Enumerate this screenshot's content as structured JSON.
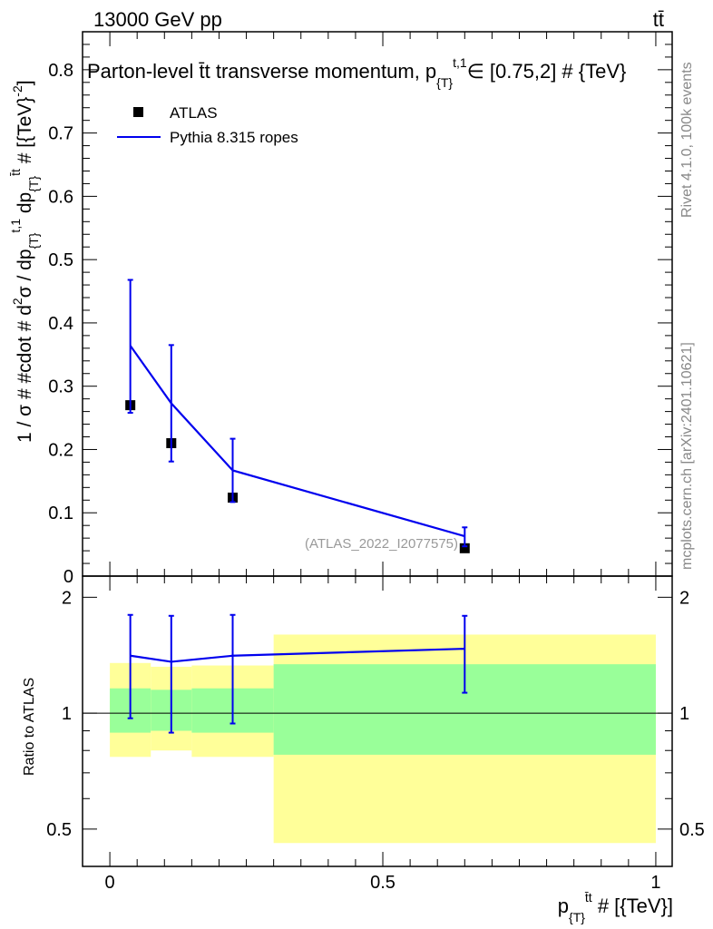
{
  "header": {
    "energy_label": "13000 GeV pp",
    "process_label": "tt̄"
  },
  "side_labels": {
    "rivet": "Rivet 4.1.0,  100k events",
    "mcplots": "mcplots.cern.ch [arXiv:2401.10621]"
  },
  "chart_data": [
    {
      "type": "scatter",
      "title": "Parton-level t̄t transverse momentum, p",
      "title_sub": "{T}",
      "title_sup": "t,1",
      "title_tail": "∈ [0.75,2] # {TeV}",
      "ylabel_parts": [
        "1 / σ # #cdot # d",
        "2",
        "σ / dp",
        "{T}",
        "t,1",
        " dp",
        "{T}",
        "t̄t",
        " # [{TeV}",
        "-2",
        "]"
      ],
      "ylim": [
        0,
        0.86
      ],
      "yticks": [
        "0",
        "0.1",
        "0.2",
        "0.3",
        "0.4",
        "0.5",
        "0.6",
        "0.7",
        "0.8"
      ],
      "watermark": "(ATLAS_2022_I2077575)",
      "legend": [
        "ATLAS",
        "Pythia 8.315 ropes"
      ],
      "series": [
        {
          "name": "ATLAS",
          "style": "marker",
          "x": [
            0.0375,
            0.1125,
            0.225,
            0.65
          ],
          "y": [
            0.27,
            0.21,
            0.124,
            0.044
          ]
        },
        {
          "name": "Pythia 8.315 ropes",
          "style": "line",
          "color": "#0000ee",
          "x": [
            0.0375,
            0.1125,
            0.225,
            0.65
          ],
          "y": [
            0.364,
            0.273,
            0.167,
            0.063
          ],
          "err_lo": [
            0.106,
            0.092,
            0.05,
            0.016
          ],
          "err_hi": [
            0.104,
            0.092,
            0.05,
            0.014
          ]
        }
      ]
    },
    {
      "type": "scatter",
      "ylabel": "Ratio to ATLAS",
      "ylim": [
        0.4,
        2.27
      ],
      "yticks": [
        "0.5",
        "1",
        "2"
      ],
      "ytick_values": [
        0.5,
        1,
        2
      ],
      "xlabel_parts": [
        "p",
        "{T}",
        "t̄t",
        " # [{TeV}]"
      ],
      "xlim": [
        -0.05,
        1.03
      ],
      "xticks": [
        "0",
        "0.5",
        "1"
      ],
      "xtick_values": [
        0,
        0.5,
        1
      ],
      "bands": [
        {
          "x": [
            0,
            0.075
          ],
          "green": [
            0.89,
            1.16
          ],
          "yellow": [
            0.77,
            1.35
          ]
        },
        {
          "x": [
            0.075,
            0.15
          ],
          "green": [
            0.9,
            1.15
          ],
          "yellow": [
            0.8,
            1.32
          ]
        },
        {
          "x": [
            0.15,
            0.3
          ],
          "green": [
            0.89,
            1.16
          ],
          "yellow": [
            0.77,
            1.33
          ]
        },
        {
          "x": [
            0.3,
            1.0
          ],
          "green": [
            0.78,
            1.34
          ],
          "yellow": [
            0.46,
            1.6
          ]
        }
      ],
      "colors": {
        "green": "#99ff99",
        "yellow": "#ffff99",
        "line": "#0000ee"
      },
      "series": [
        {
          "name": "Pythia 8.315 ropes",
          "x": [
            0.0375,
            0.1125,
            0.225,
            0.65
          ],
          "y": [
            1.41,
            1.36,
            1.41,
            1.47
          ],
          "err_lo": [
            0.44,
            0.47,
            0.47,
            0.34
          ],
          "err_hi": [
            0.39,
            0.43,
            0.39,
            0.32
          ]
        }
      ]
    }
  ]
}
